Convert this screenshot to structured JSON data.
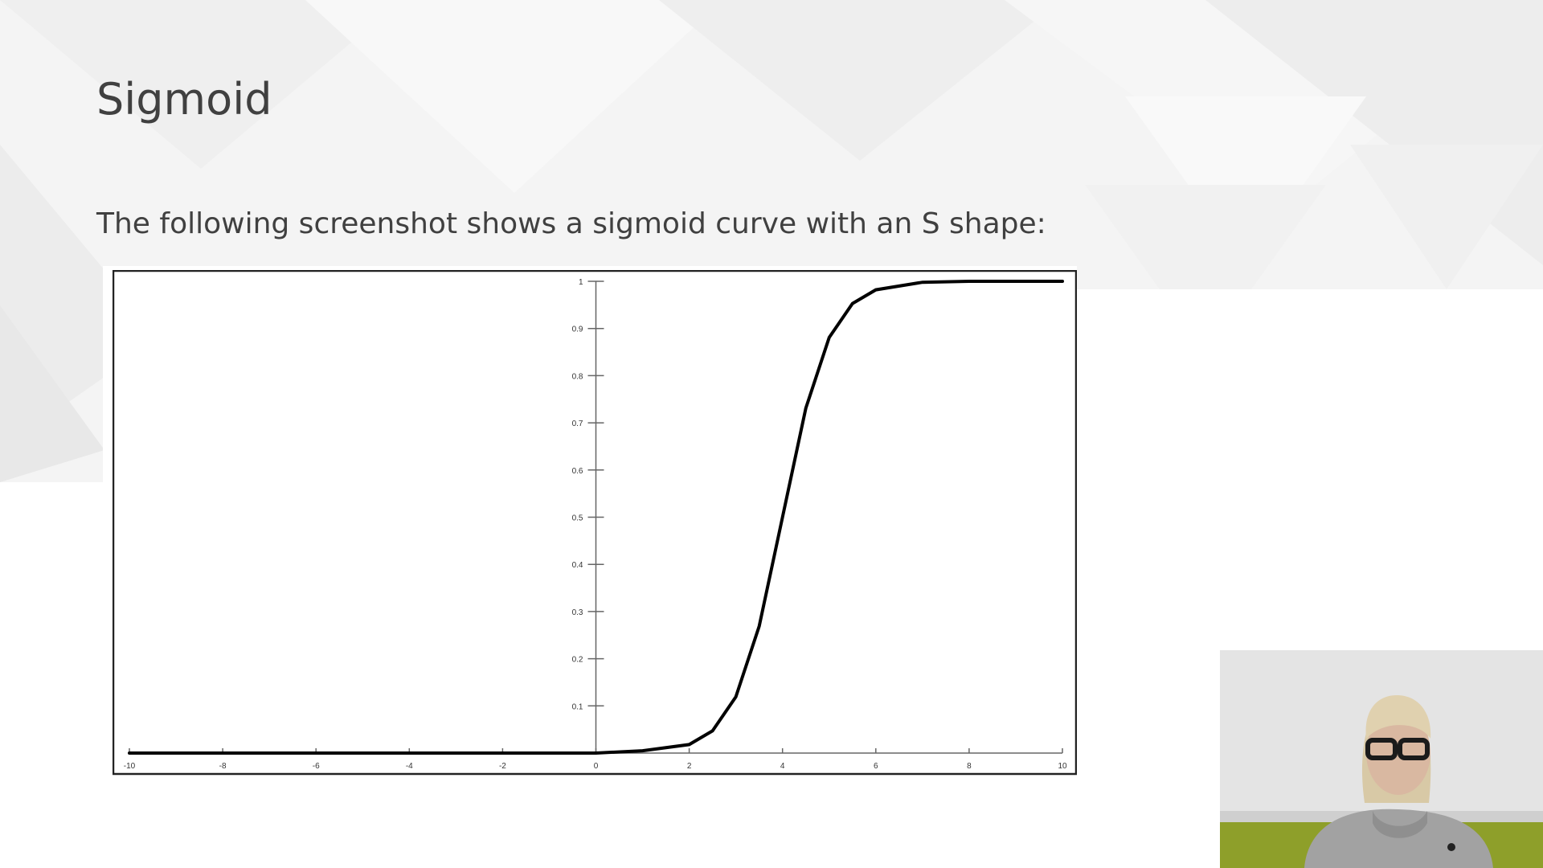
{
  "slide": {
    "title": "Sigmoid",
    "body_text": "The following screenshot shows a sigmoid curve with an S shape:"
  },
  "chart_data": {
    "type": "line",
    "title": "",
    "xlabel": "",
    "ylabel": "",
    "xlim": [
      -10,
      10
    ],
    "ylim": [
      0,
      1
    ],
    "x_ticks": [
      -10,
      -8,
      -6,
      -4,
      -2,
      0,
      2,
      4,
      6,
      8,
      10
    ],
    "x_tick_labels": [
      "-10",
      "-8",
      "-6",
      "-4",
      "-2",
      "0",
      "2",
      "4",
      "6",
      "8",
      "10"
    ],
    "y_ticks": [
      0.1,
      0.2,
      0.3,
      0.4,
      0.5,
      0.6,
      0.7,
      0.8,
      0.9,
      1
    ],
    "y_tick_labels": [
      "0.1",
      "0.2",
      "0.3",
      "0.4",
      "0.5",
      "0.6",
      "0.7",
      "0.8",
      "0.9",
      "1"
    ],
    "grid": false,
    "legend": "none",
    "series": [
      {
        "x": [
          -10,
          -8,
          -6,
          -4,
          -2,
          0,
          1,
          2,
          2.5,
          3,
          3.5,
          4,
          4.5,
          5,
          5.5,
          6,
          7,
          8,
          10
        ],
        "y": [
          0.0,
          0.0,
          0.0,
          0.0,
          0.0,
          0.0,
          0.005,
          0.018,
          0.047,
          0.119,
          0.269,
          0.5,
          0.731,
          0.881,
          0.953,
          0.982,
          0.998,
          1.0,
          1.0
        ],
        "color": "#000000"
      }
    ]
  },
  "presenter": {
    "icon": "presenter-video-icon"
  }
}
